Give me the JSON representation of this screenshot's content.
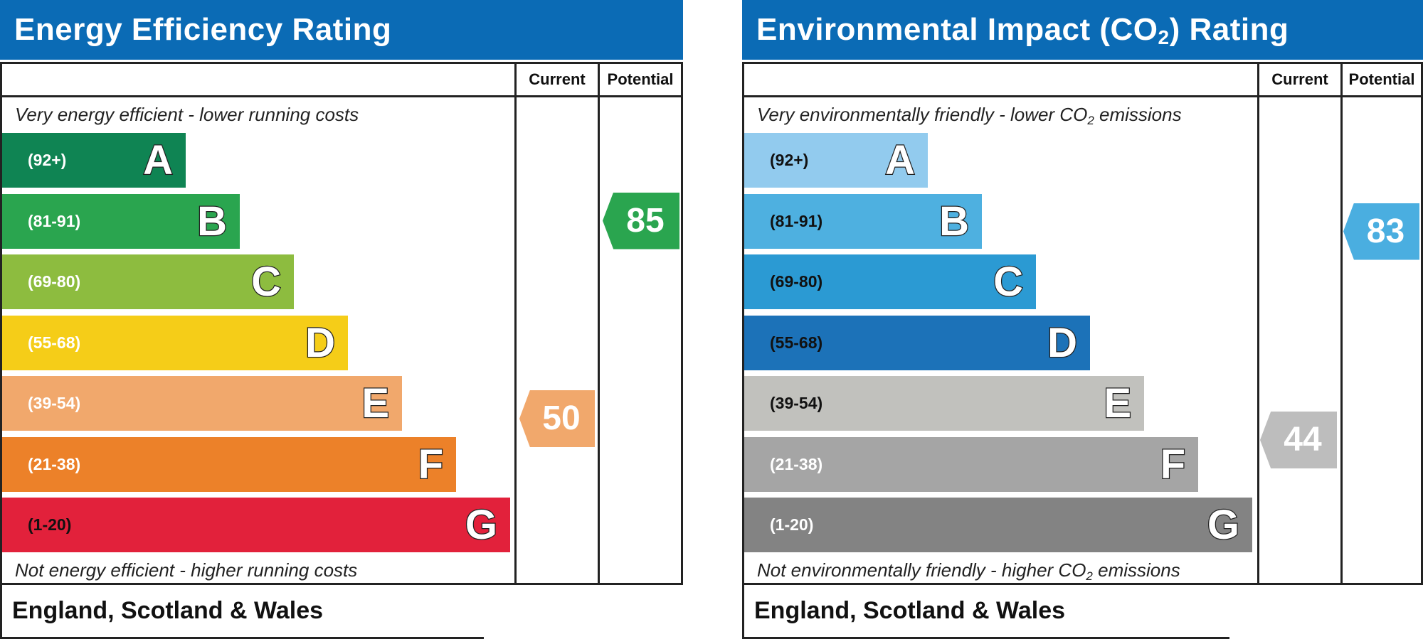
{
  "energy": {
    "title": "Energy Efficiency Rating",
    "col_current": "Current",
    "col_potential": "Potential",
    "top_caption": "Very energy efficient - lower running costs",
    "bottom_caption": "Not energy efficient - higher running costs",
    "footer": "England, Scotland & Wales",
    "bands": [
      {
        "range": "(92+)",
        "letter": "A",
        "color": "#0f8453"
      },
      {
        "range": "(81-91)",
        "letter": "B",
        "color": "#2aa54f"
      },
      {
        "range": "(69-80)",
        "letter": "C",
        "color": "#8dbc3f"
      },
      {
        "range": "(55-68)",
        "letter": "D",
        "color": "#f5cd18"
      },
      {
        "range": "(39-54)",
        "letter": "E",
        "color": "#f1a86c"
      },
      {
        "range": "(21-38)",
        "letter": "F",
        "color": "#ec8129"
      },
      {
        "range": "(1-20)",
        "letter": "G",
        "color": "#e2213b"
      }
    ],
    "current": {
      "value": "50",
      "band": "E",
      "color": "#f1a86c"
    },
    "potential": {
      "value": "85",
      "band": "B",
      "color": "#2aa54f"
    }
  },
  "environment": {
    "title_pre": "Environmental Impact (CO",
    "title_sub": "2",
    "title_post": ") Rating",
    "col_current": "Current",
    "col_potential": "Potential",
    "top_caption_pre": "Very environmentally friendly - lower CO",
    "top_caption_sub": "2",
    "top_caption_post": " emissions",
    "bottom_caption_pre": "Not environmentally friendly - higher CO",
    "bottom_caption_sub": "2",
    "bottom_caption_post": " emissions",
    "footer": "England, Scotland & Wales",
    "bands": [
      {
        "range": "(92+)",
        "letter": "A",
        "color": "#92cbee"
      },
      {
        "range": "(81-91)",
        "letter": "B",
        "color": "#4eb0e0"
      },
      {
        "range": "(69-80)",
        "letter": "C",
        "color": "#2b9ad3"
      },
      {
        "range": "(55-68)",
        "letter": "D",
        "color": "#1c72b8"
      },
      {
        "range": "(39-54)",
        "letter": "E",
        "color": "#c1c1bd"
      },
      {
        "range": "(21-38)",
        "letter": "F",
        "color": "#a5a5a5"
      },
      {
        "range": "(1-20)",
        "letter": "G",
        "color": "#838383"
      }
    ],
    "current": {
      "value": "44",
      "band": "E",
      "color": "#bdbdbd"
    },
    "potential": {
      "value": "83",
      "band": "B",
      "color": "#4aaee0"
    }
  }
}
